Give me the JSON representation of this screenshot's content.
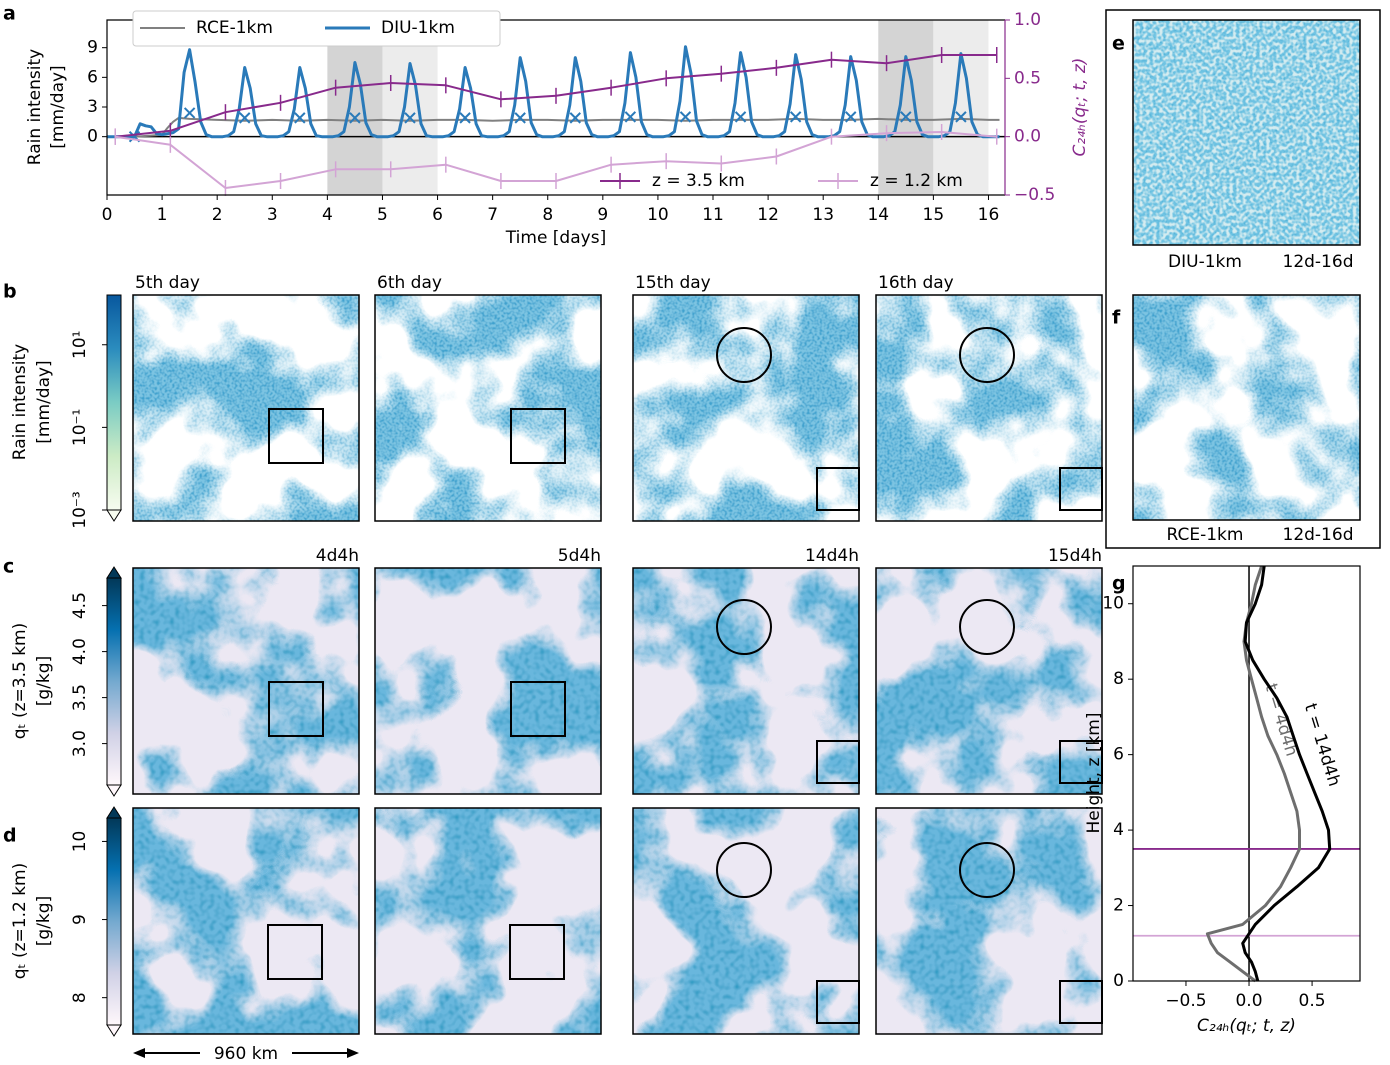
{
  "panel_labels": [
    "a",
    "b",
    "c",
    "d",
    "e",
    "f",
    "g"
  ],
  "chart_data": [
    {
      "type": "line",
      "xlabel": "Time [days]",
      "ylabel": [
        "Rain intensity",
        "[mm/day]"
      ],
      "y2label": "C₂₄ₕ(qₜ; t, z)",
      "xlim": [
        0,
        16.3
      ],
      "xticks": [
        0,
        1,
        2,
        3,
        4,
        5,
        6,
        7,
        8,
        9,
        10,
        11,
        12,
        13,
        14,
        15,
        16
      ],
      "ylim": [
        -5.9,
        11.8
      ],
      "yticks": [
        0,
        3,
        6,
        9
      ],
      "y2lim": [
        -0.5,
        1.0
      ],
      "y2ticks": [
        {
          "value": -0.5,
          "label": "−0.5"
        },
        {
          "value": 0,
          "label": "0.0"
        },
        {
          "value": 0.5,
          "label": "0.5"
        },
        {
          "value": 1.0,
          "label": "1.0"
        }
      ],
      "y2color": "#882a8c",
      "spans": [
        {
          "from": 4,
          "to": 5,
          "color": "#d4d4d4"
        },
        {
          "from": 5,
          "to": 6,
          "color": "#ececec"
        },
        {
          "from": 14,
          "to": 15,
          "color": "#d4d4d4"
        },
        {
          "from": 15,
          "to": 16,
          "color": "#ececec"
        }
      ],
      "series": [
        {
          "name": "RCE-1km",
          "color": "#808080",
          "legend": "upper left",
          "x": [
            0,
            0.5,
            1.0,
            1.1,
            1.2,
            1.3,
            1.5,
            2,
            2.5,
            3,
            3.5,
            4,
            4.5,
            5,
            5.5,
            6,
            6.5,
            7,
            7.5,
            8,
            8.5,
            9,
            9.5,
            10,
            10.5,
            11,
            11.5,
            12,
            12.5,
            13,
            13.5,
            14,
            14.5,
            15,
            15.5,
            16,
            16.2
          ],
          "values": [
            0,
            0,
            0.2,
            0.9,
            1.5,
            1.9,
            1.8,
            1.7,
            1.6,
            1.7,
            1.6,
            1.7,
            1.6,
            1.7,
            1.6,
            1.7,
            1.7,
            1.6,
            1.7,
            1.7,
            1.6,
            1.7,
            1.7,
            1.7,
            1.6,
            1.7,
            1.7,
            1.7,
            1.8,
            1.7,
            1.7,
            1.8,
            1.7,
            1.7,
            1.8,
            1.7,
            1.7
          ]
        },
        {
          "name": "DIU-1km",
          "color": "#2a7ab9",
          "legend": "upper left",
          "x": [
            0,
            0.1,
            0.2,
            0.3,
            0.4,
            0.5,
            0.6,
            0.7,
            0.8,
            0.9,
            1,
            1.1,
            1.2,
            1.3,
            1.4,
            1.5,
            1.6,
            1.7,
            1.8,
            1.9,
            2,
            2.1,
            2.2,
            2.3,
            2.4,
            2.5,
            2.6,
            2.7,
            2.8,
            2.9,
            3,
            3.1,
            3.2,
            3.3,
            3.4,
            3.5,
            3.6,
            3.7,
            3.8,
            3.9,
            4,
            4.1,
            4.2,
            4.3,
            4.4,
            4.5,
            4.6,
            4.7,
            4.8,
            4.9,
            5,
            5.1,
            5.2,
            5.3,
            5.4,
            5.5,
            5.6,
            5.7,
            5.8,
            5.9,
            6,
            6.1,
            6.2,
            6.3,
            6.4,
            6.5,
            6.6,
            6.7,
            6.8,
            6.9,
            7,
            7.1,
            7.2,
            7.3,
            7.4,
            7.5,
            7.6,
            7.7,
            7.8,
            7.9,
            8,
            8.1,
            8.2,
            8.3,
            8.4,
            8.5,
            8.6,
            8.7,
            8.8,
            8.9,
            9,
            9.1,
            9.2,
            9.3,
            9.4,
            9.5,
            9.6,
            9.7,
            9.8,
            9.9,
            10,
            10.1,
            10.2,
            10.3,
            10.4,
            10.5,
            10.6,
            10.7,
            10.8,
            10.9,
            11,
            11.1,
            11.2,
            11.3,
            11.4,
            11.5,
            11.6,
            11.7,
            11.8,
            11.9,
            12,
            12.1,
            12.2,
            12.3,
            12.4,
            12.5,
            12.6,
            12.7,
            12.8,
            12.9,
            13,
            13.1,
            13.2,
            13.3,
            13.4,
            13.5,
            13.6,
            13.7,
            13.8,
            13.9,
            14,
            14.1,
            14.2,
            14.3,
            14.4,
            14.5,
            14.6,
            14.7,
            14.8,
            14.9,
            15,
            15.1,
            15.2,
            15.3,
            15.4,
            15.5,
            15.6,
            15.7,
            15.8,
            15.9,
            16,
            16.1,
            16.2
          ],
          "values": [
            0,
            0,
            0,
            0,
            0,
            0,
            1.3,
            1.1,
            1.0,
            0.3,
            0.2,
            0.3,
            0.4,
            0.8,
            6.5,
            8.8,
            5.5,
            1.5,
            0.2,
            0,
            0,
            0,
            0.1,
            0.5,
            2.8,
            7.0,
            4.9,
            1.3,
            0.1,
            0,
            0,
            0,
            0.1,
            0.5,
            2.8,
            7.0,
            4.9,
            1.3,
            0.1,
            0,
            0,
            0,
            0.1,
            0.5,
            3.0,
            7.5,
            5.3,
            1.4,
            0.2,
            0,
            0,
            0,
            0.1,
            0.5,
            3.0,
            7.4,
            5.2,
            1.3,
            0.1,
            0,
            0,
            0,
            0.1,
            0.5,
            2.8,
            7.0,
            4.9,
            1.3,
            0.1,
            0,
            0,
            0,
            0.1,
            0.5,
            3.2,
            8.0,
            5.6,
            1.4,
            0.2,
            0,
            0,
            0,
            0.1,
            0.5,
            3.2,
            8.0,
            5.6,
            1.4,
            0.2,
            0,
            0,
            0,
            0.1,
            0.5,
            3.4,
            8.5,
            6.0,
            1.5,
            0.2,
            0,
            0,
            0,
            0.1,
            0.5,
            3.6,
            9.1,
            6.4,
            1.6,
            0.2,
            0,
            0,
            0,
            0.1,
            0.5,
            3.4,
            8.5,
            6.0,
            1.5,
            0.2,
            0,
            0,
            0,
            0.1,
            0.5,
            3.3,
            8.3,
            5.8,
            1.5,
            0.2,
            0,
            0,
            0,
            0.1,
            0.5,
            3.2,
            8.1,
            5.7,
            1.5,
            0.2,
            0,
            0,
            0,
            0.1,
            0.5,
            3.2,
            8.1,
            5.7,
            1.5,
            0.2,
            0,
            0,
            0,
            0.1,
            0.5,
            3.4,
            8.4,
            5.9,
            1.5,
            0.2,
            0,
            0,
            0,
            0
          ],
          "mean_x": [
            0.5,
            1.5,
            2.5,
            3.5,
            4.5,
            5.5,
            6.5,
            7.5,
            8.5,
            9.5,
            10.5,
            11.5,
            12.5,
            13.5,
            14.5,
            15.5
          ],
          "mean_values": [
            0,
            2.4,
            1.9,
            1.9,
            1.9,
            1.9,
            1.9,
            1.9,
            1.9,
            2.0,
            2.0,
            2.0,
            2.0,
            2.0,
            2.0,
            2.0
          ]
        },
        {
          "name": "z = 3.5 km",
          "color": "#882a8c",
          "axis": "y2",
          "marker": "|",
          "legend": "lower right",
          "x": [
            0.15,
            1.15,
            2.15,
            3.15,
            4.15,
            5.15,
            6.15,
            7.15,
            8.15,
            9.15,
            10.15,
            11.15,
            12.15,
            13.15,
            14.15,
            15.15,
            16.15
          ],
          "values": [
            0,
            0.05,
            0.21,
            0.29,
            0.42,
            0.46,
            0.44,
            0.32,
            0.35,
            0.42,
            0.5,
            0.54,
            0.59,
            0.66,
            0.63,
            0.7,
            0.7
          ]
        },
        {
          "name": "z = 1.2 km",
          "color": "#d3a4d5",
          "axis": "y2",
          "marker": "|",
          "legend": "lower right",
          "x": [
            0.15,
            1.15,
            2.15,
            3.15,
            4.15,
            5.15,
            6.15,
            7.15,
            8.15,
            9.15,
            10.15,
            11.15,
            12.15,
            13.15,
            14.15,
            15.15,
            16.15
          ],
          "values": [
            0,
            -0.07,
            -0.44,
            -0.38,
            -0.28,
            -0.28,
            -0.24,
            -0.38,
            -0.38,
            -0.24,
            -0.21,
            -0.23,
            -0.17,
            0,
            0.03,
            0.04,
            0
          ]
        }
      ]
    },
    {
      "type": "profile",
      "xlabel": "C₂₄ₕ(qₜ; t, z)",
      "ylabel": "Height, z [km]",
      "xlim": [
        -0.92,
        0.88
      ],
      "xticks": [
        {
          "value": -0.5,
          "label": "−0.5"
        },
        {
          "value": 0,
          "label": "0.0"
        },
        {
          "value": 0.5,
          "label": "0.5"
        }
      ],
      "ylim": [
        0,
        11
      ],
      "yticks": [
        0,
        2,
        4,
        6,
        8,
        10
      ],
      "y": [
        0,
        0.25,
        0.5,
        0.75,
        1,
        1.25,
        1.5,
        2,
        2.5,
        3,
        3.5,
        4,
        4.5,
        5,
        5.5,
        6,
        6.5,
        7,
        7.5,
        8,
        8.5,
        9,
        9.5,
        10,
        10.5,
        11
      ],
      "hlines": [
        {
          "value": 3.5,
          "color": "#882a8c"
        },
        {
          "value": 1.2,
          "color": "#d3a4d5"
        }
      ],
      "series": [
        {
          "name": "t = 4d4h",
          "color": "#6e6e6e",
          "values": [
            0.05,
            -0.05,
            -0.15,
            -0.25,
            -0.3,
            -0.33,
            -0.05,
            0.13,
            0.25,
            0.33,
            0.4,
            0.4,
            0.38,
            0.33,
            0.28,
            0.22,
            0.15,
            0.1,
            0.06,
            0.02,
            -0.02,
            -0.04,
            -0.02,
            0.02,
            0.05,
            0.1
          ]
        },
        {
          "name": "t = 14d4h",
          "color": "#000000",
          "values": [
            0.07,
            0.05,
            0.02,
            -0.03,
            -0.05,
            0,
            0.05,
            0.2,
            0.38,
            0.55,
            0.64,
            0.63,
            0.58,
            0.52,
            0.46,
            0.4,
            0.35,
            0.3,
            0.22,
            0.12,
            0.03,
            -0.03,
            -0.02,
            0.05,
            0.1,
            0.12
          ]
        }
      ]
    }
  ],
  "maps": {
    "b": {
      "titles": [
        "5th day",
        "6th day",
        "15th day",
        "16th day"
      ]
    },
    "c": {
      "titles": [
        "4d4h",
        "5d4h",
        "14d4h",
        "15d4h"
      ]
    },
    "e": {
      "labels": [
        "DIU-1km",
        "12d-16d"
      ]
    },
    "f": {
      "labels": [
        "RCE-1km",
        "12d-16d"
      ]
    }
  },
  "colorbars": [
    {
      "label": [
        "Rain intensity",
        "[mm/day]"
      ],
      "log": true,
      "lim": [
        0.001,
        160
      ],
      "extend": "min",
      "colors": [
        "#f7fcf0",
        "#ccebc5",
        "#7bccc4",
        "#2b8cbe",
        "#08589e"
      ],
      "ticks": [
        {
          "value": 0.001,
          "label": "10⁻³"
        },
        {
          "value": 0.1,
          "label": "10⁻¹"
        },
        {
          "value": 10,
          "label": "10¹"
        }
      ]
    },
    {
      "label": [
        "qₜ (z=3.5 km)",
        "[g/kg]"
      ],
      "log": false,
      "lim": [
        2.55,
        4.8
      ],
      "extend": "both",
      "colors": [
        "#fff7fb",
        "#d0d1e6",
        "#74a9cf",
        "#0570b0",
        "#023858"
      ],
      "ticks": [
        {
          "value": 3.0,
          "label": "3.0"
        },
        {
          "value": 3.5,
          "label": "3.5"
        },
        {
          "value": 4.0,
          "label": "4.0"
        },
        {
          "value": 4.5,
          "label": "4.5"
        }
      ]
    },
    {
      "label": [
        "qₜ (z=1.2 km)",
        "[g/kg]"
      ],
      "log": false,
      "lim": [
        7.65,
        10.3
      ],
      "extend": "both",
      "colors": [
        "#fff7fb",
        "#d0d1e6",
        "#74a9cf",
        "#0570b0",
        "#023858"
      ],
      "ticks": [
        8,
        9,
        10
      ]
    }
  ],
  "scale_bar": "960 km"
}
